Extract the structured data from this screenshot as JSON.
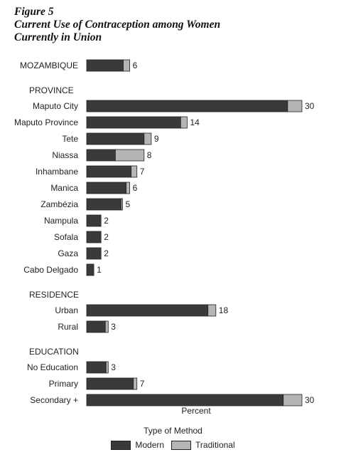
{
  "figure": {
    "title_lines": [
      "Figure 5",
      "Current Use of Contraception among Women",
      "Currently in Union"
    ]
  },
  "colors": {
    "modern": "#3a3a3a",
    "traditional": "#b5b5b5",
    "outline": "#222222"
  },
  "chart_data": {
    "type": "bar",
    "orientation": "horizontal",
    "stacked": true,
    "title": "Current Use of Contraception among Women Currently in Union",
    "xlabel": "Percent",
    "ylabel": "",
    "xlim": [
      0,
      31
    ],
    "grid": false,
    "legend": {
      "title": "Type of Method",
      "position": "bottom-center",
      "entries": [
        "Modern",
        "Traditional"
      ]
    },
    "series_names": [
      "Modern",
      "Traditional"
    ],
    "groups": [
      {
        "heading": "",
        "rows": [
          {
            "label": "MOZAMBIQUE",
            "modern": 5.1,
            "traditional": 0.9,
            "total": 6
          }
        ]
      },
      {
        "heading": "PROVINCE",
        "rows": [
          {
            "label": "Maputo City",
            "modern": 28,
            "traditional": 2,
            "total": 30
          },
          {
            "label": "Maputo Province",
            "modern": 13.1,
            "traditional": 0.9,
            "total": 14
          },
          {
            "label": "Tete",
            "modern": 8,
            "traditional": 1,
            "total": 9
          },
          {
            "label": "Niassa",
            "modern": 4,
            "traditional": 4,
            "total": 8
          },
          {
            "label": "Inhambane",
            "modern": 6.2,
            "traditional": 0.8,
            "total": 7
          },
          {
            "label": "Manica",
            "modern": 5.5,
            "traditional": 0.5,
            "total": 6
          },
          {
            "label": "Zambézia",
            "modern": 4.8,
            "traditional": 0.2,
            "total": 5
          },
          {
            "label": "Nampula",
            "modern": 1.9,
            "traditional": 0.1,
            "total": 2
          },
          {
            "label": "Sofala",
            "modern": 1.9,
            "traditional": 0.1,
            "total": 2
          },
          {
            "label": "Gaza",
            "modern": 1.9,
            "traditional": 0.1,
            "total": 2
          },
          {
            "label": "Cabo Delgado",
            "modern": 0.9,
            "traditional": 0.1,
            "total": 1
          }
        ]
      },
      {
        "heading": "RESIDENCE",
        "rows": [
          {
            "label": "Urban",
            "modern": 16.9,
            "traditional": 1.1,
            "total": 18
          },
          {
            "label": "Rural",
            "modern": 2.6,
            "traditional": 0.4,
            "total": 3
          }
        ]
      },
      {
        "heading": "EDUCATION",
        "rows": [
          {
            "label": "No Education",
            "modern": 2.7,
            "traditional": 0.3,
            "total": 3
          },
          {
            "label": "Primary",
            "modern": 6.5,
            "traditional": 0.5,
            "total": 7
          },
          {
            "label": "Secondary +",
            "modern": 27.4,
            "traditional": 2.6,
            "total": 30
          }
        ]
      }
    ]
  }
}
